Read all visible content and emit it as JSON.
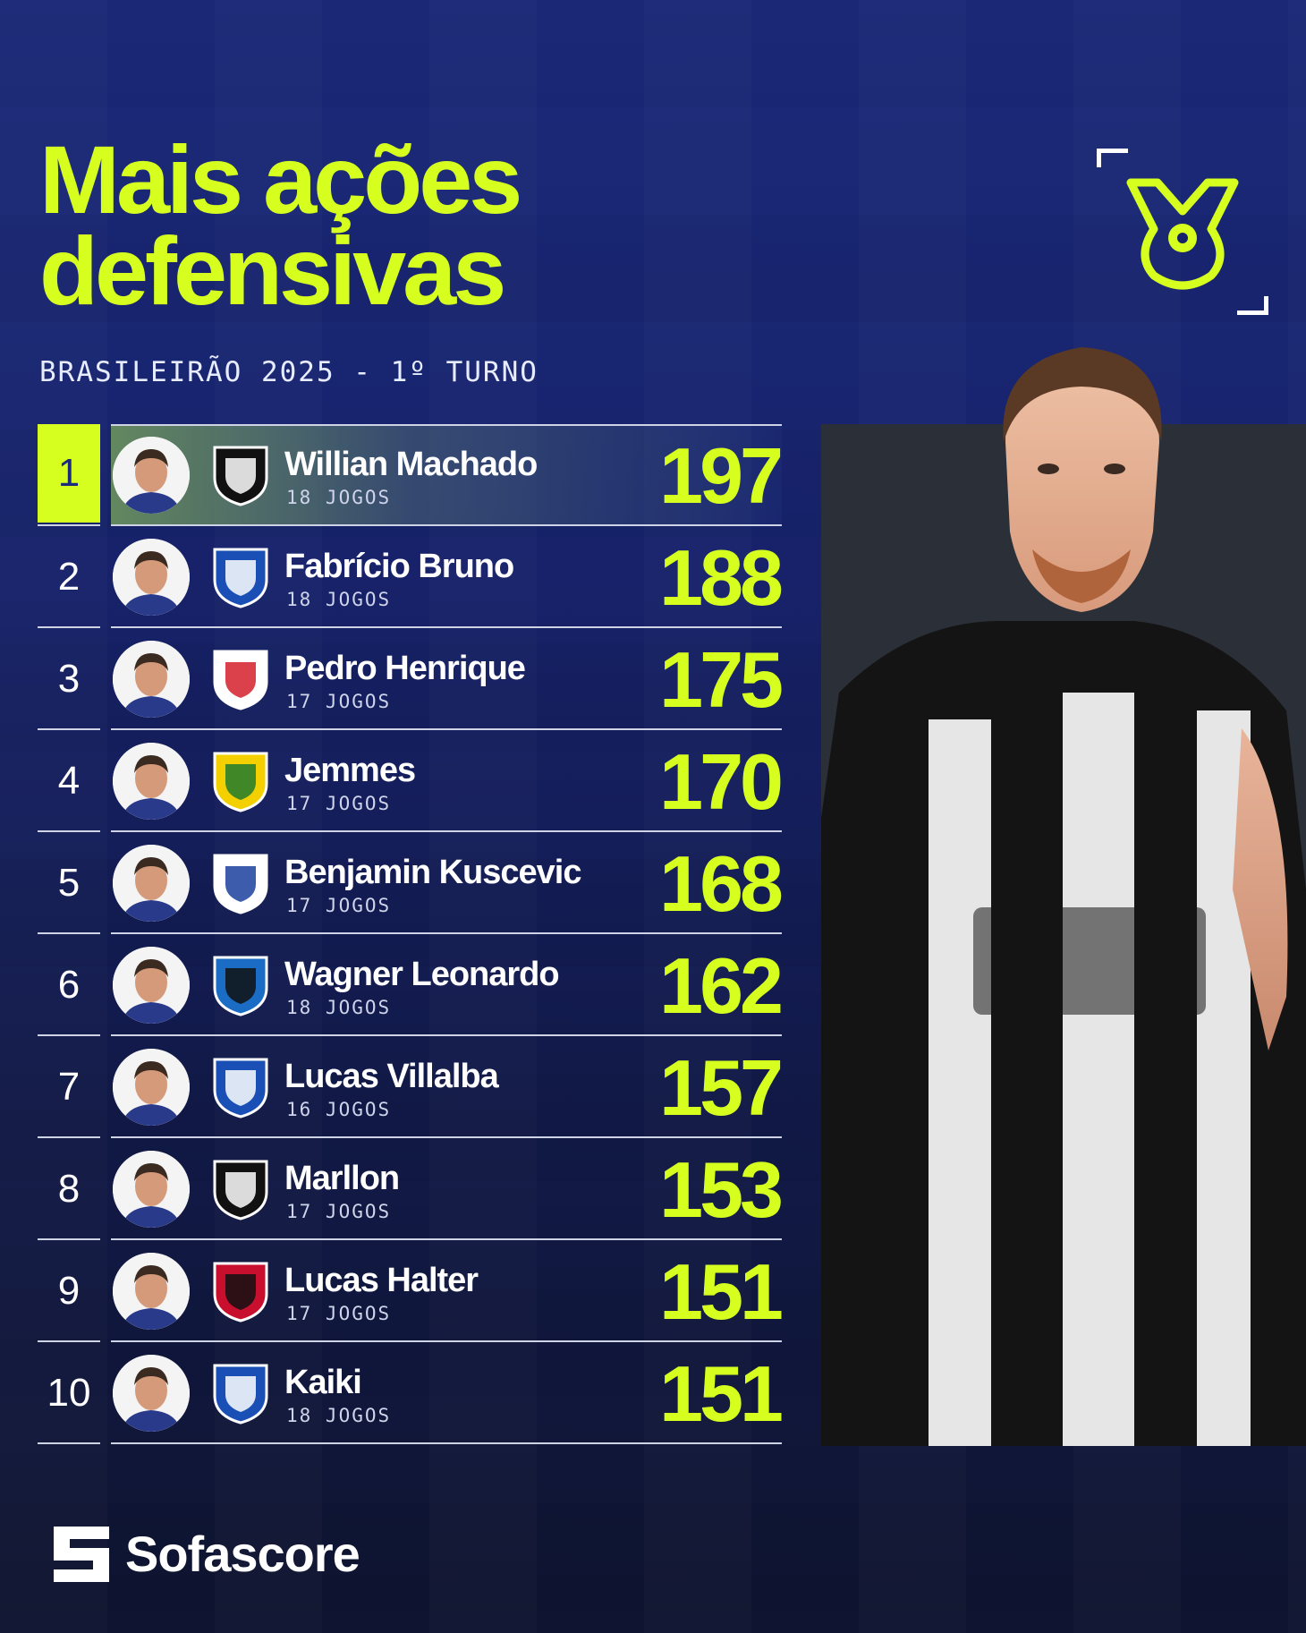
{
  "title_lines": [
    "Mais ações",
    "defensivas"
  ],
  "subtitle": "BRASILEIRÃO 2025 - 1º TURNO",
  "colors": {
    "accent": "#d6ff1f",
    "background": "#17226a",
    "text": "#ffffff"
  },
  "icons": {
    "league": "brasileirao-league-icon",
    "brand": "sofascore-icon"
  },
  "players": [
    {
      "rank": "1",
      "name": "Willian Machado",
      "games": "18 JOGOS",
      "value": "197",
      "club_icon": "ceara-crest-icon"
    },
    {
      "rank": "2",
      "name": "Fabrício Bruno",
      "games": "18 JOGOS",
      "value": "188",
      "club_icon": "cruzeiro-crest-icon"
    },
    {
      "rank": "3",
      "name": "Pedro Henrique",
      "games": "17 JOGOS",
      "value": "175",
      "club_icon": "red-bull-bragantino-crest-icon"
    },
    {
      "rank": "4",
      "name": "Jemmes",
      "games": "17 JOGOS",
      "value": "170",
      "club_icon": "mirassol-crest-icon"
    },
    {
      "rank": "5",
      "name": "Benjamin Kuscevic",
      "games": "17 JOGOS",
      "value": "168",
      "club_icon": "fortaleza-crest-icon"
    },
    {
      "rank": "6",
      "name": "Wagner Leonardo",
      "games": "18 JOGOS",
      "value": "162",
      "club_icon": "gremio-crest-icon"
    },
    {
      "rank": "7",
      "name": "Lucas Villalba",
      "games": "16 JOGOS",
      "value": "157",
      "club_icon": "cruzeiro-crest-icon"
    },
    {
      "rank": "8",
      "name": "Marllon",
      "games": "17 JOGOS",
      "value": "153",
      "club_icon": "ceara-crest-icon"
    },
    {
      "rank": "9",
      "name": "Lucas Halter",
      "games": "17 JOGOS",
      "value": "151",
      "club_icon": "vitoria-crest-icon"
    },
    {
      "rank": "10",
      "name": "Kaiki",
      "games": "18 JOGOS",
      "value": "151",
      "club_icon": "cruzeiro-crest-icon"
    }
  ],
  "footer": {
    "brand": "Sofascore"
  }
}
